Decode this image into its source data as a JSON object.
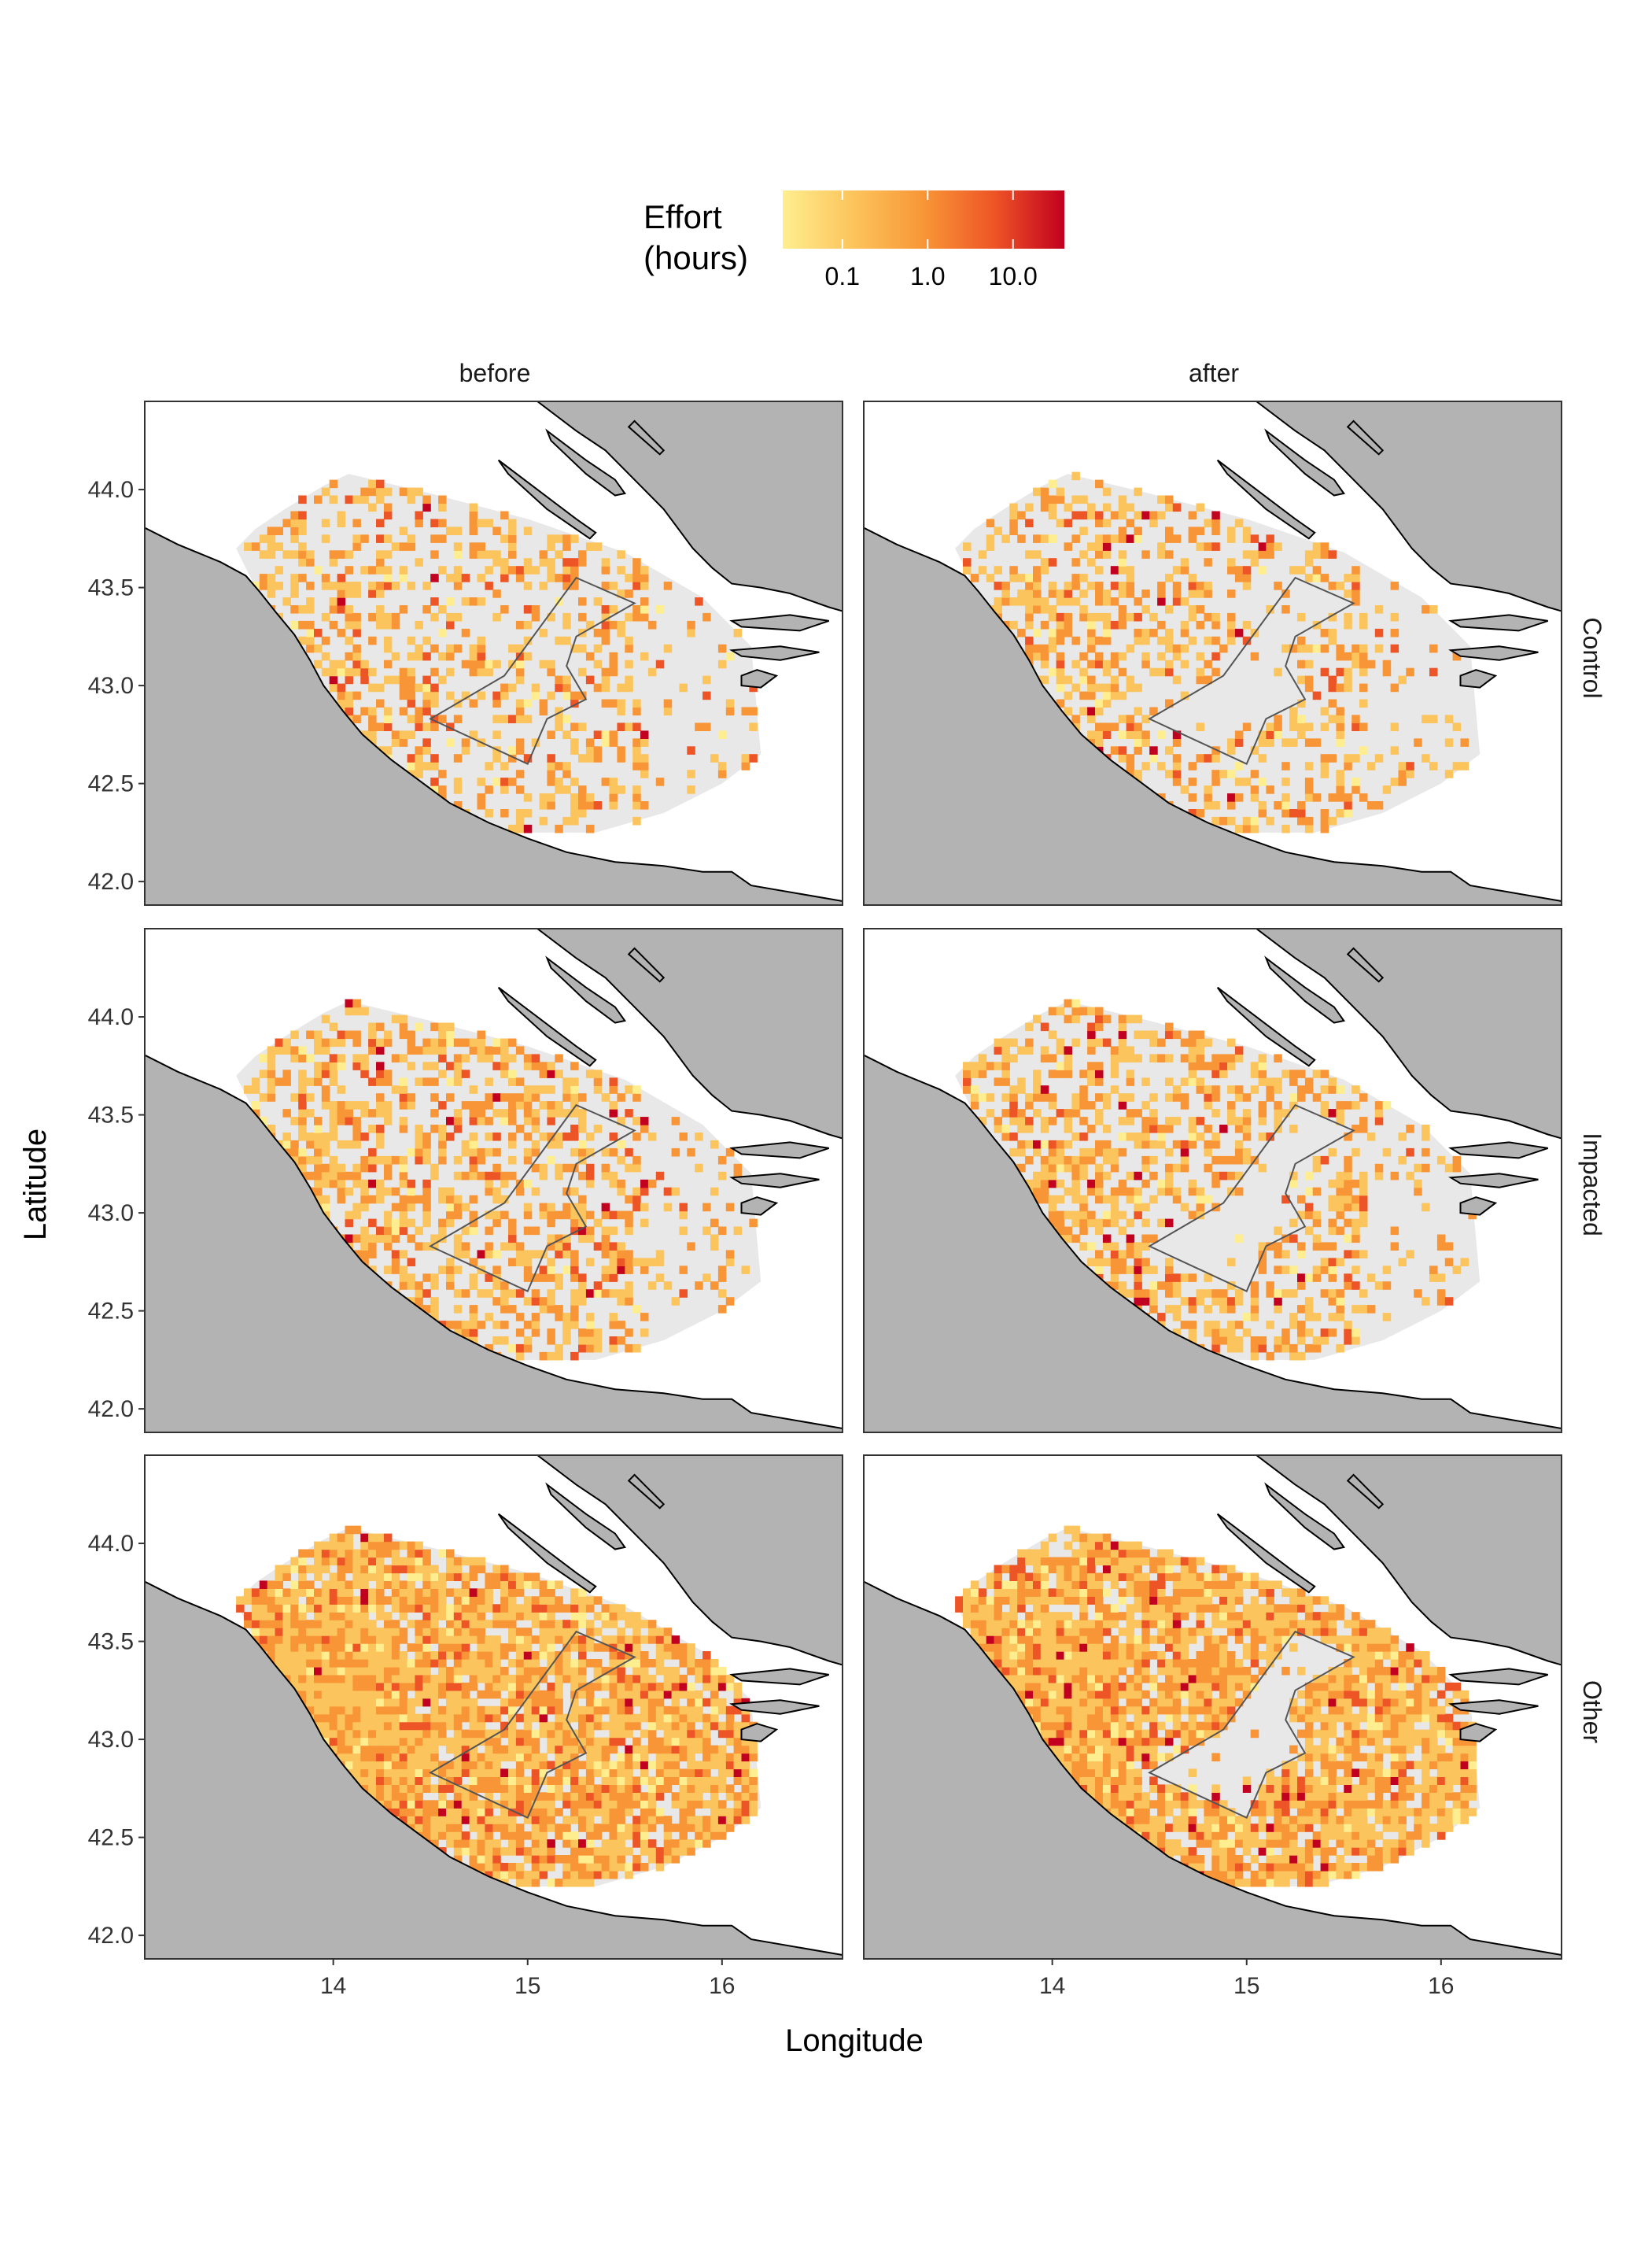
{
  "figure": {
    "xlabel": "Longitude",
    "ylabel": "Latitude"
  },
  "legend": {
    "title_line1": "Effort",
    "title_line2": "(hours)",
    "ticks": [
      "0.1",
      "1.0",
      "10.0"
    ],
    "tick_values": [
      0.1,
      1.0,
      10.0
    ],
    "range": [
      0.02,
      40
    ],
    "scale": "log10",
    "colors": [
      "#ffee8f",
      "#fcc45c",
      "#f89637",
      "#ee5526",
      "#c2001f"
    ]
  },
  "columns": [
    "before",
    "after"
  ],
  "rows": [
    "Control",
    "Impacted",
    "Other"
  ],
  "axes": {
    "x_ticks": [
      "14",
      "15",
      "16"
    ],
    "x_tick_values": [
      14,
      15,
      16
    ],
    "y_ticks": [
      "44.0",
      "43.5",
      "43.0",
      "42.5",
      "42.0"
    ],
    "y_tick_values": [
      44.0,
      43.5,
      43.0,
      42.5,
      42.0
    ],
    "xlim": [
      13.03,
      16.62
    ],
    "ylim": [
      41.88,
      44.45
    ]
  },
  "colors": {
    "land": "#b3b3b3",
    "sea": "#ffffff",
    "study_area": "#e8e8e8",
    "closure_outline": "#555555"
  },
  "chart_data": {
    "type": "heatmap",
    "facets": [
      {
        "row": "Control",
        "col": "before",
        "coverage": "sparse",
        "closure_area_fished": true
      },
      {
        "row": "Control",
        "col": "after",
        "coverage": "sparse",
        "closure_area_fished": false
      },
      {
        "row": "Impacted",
        "col": "before",
        "coverage": "medium",
        "closure_area_fished": true
      },
      {
        "row": "Impacted",
        "col": "after",
        "coverage": "medium",
        "closure_area_fished": false
      },
      {
        "row": "Other",
        "col": "before",
        "coverage": "dense",
        "closure_area_fished": true
      },
      {
        "row": "Other",
        "col": "after",
        "coverage": "dense",
        "closure_area_fished": false
      }
    ]
  }
}
